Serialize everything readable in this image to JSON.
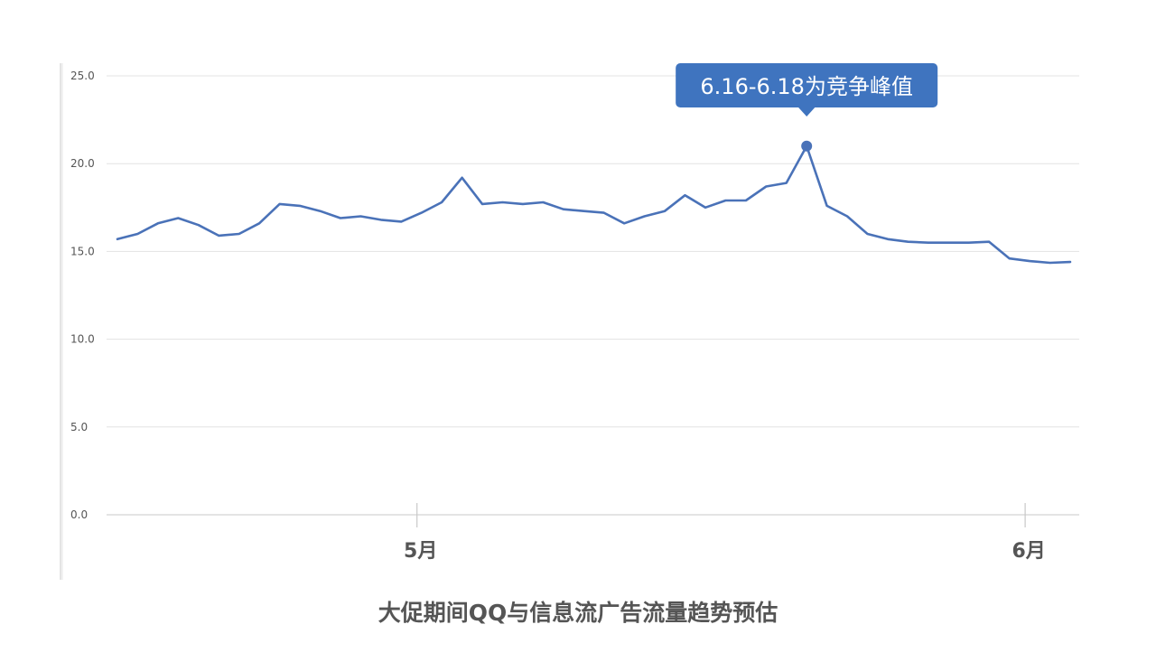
{
  "chart_data": {
    "type": "line",
    "title": "大促期间QQ与信息流广告流量趋势预估",
    "xlabel": "",
    "ylabel": "",
    "ylim": [
      0,
      25
    ],
    "y_ticks": [
      "0.0",
      "5.0",
      "10.0",
      "15.0",
      "20.0",
      "25.0"
    ],
    "x_tick_labels": [
      {
        "label": "5月",
        "index": 15
      },
      {
        "label": "6月",
        "index": 45
      }
    ],
    "grid": true,
    "legend": "none",
    "colors": {
      "line": "#4a72b8",
      "callout": "#3f74bf",
      "grid": "#e3e3e3",
      "axis": "#c8c8c8",
      "text": "#555555"
    },
    "series": [
      {
        "values": [
          15.7,
          16.0,
          16.6,
          16.9,
          16.5,
          15.9,
          16.0,
          16.6,
          17.7,
          17.6,
          17.3,
          16.9,
          17.0,
          16.8,
          16.7,
          17.2,
          17.8,
          19.2,
          17.7,
          17.8,
          17.7,
          17.8,
          17.4,
          17.3,
          17.2,
          16.6,
          17.0,
          17.3,
          18.2,
          17.5,
          17.9,
          17.9,
          18.7,
          18.9,
          21.0,
          17.6,
          17.0,
          16.0,
          15.7,
          15.55,
          15.5,
          15.5,
          15.5,
          15.55,
          14.6,
          14.45,
          14.35,
          14.4
        ]
      }
    ],
    "annotations": [
      {
        "text": "6.16-6.18为竞争峰值",
        "index": 34
      }
    ]
  }
}
